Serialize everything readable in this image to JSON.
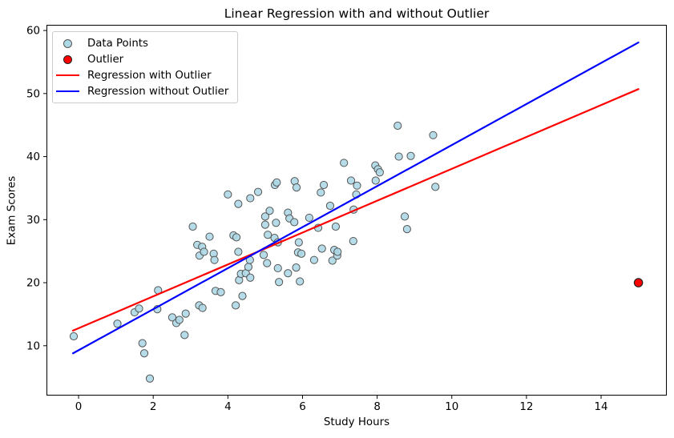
{
  "figure": {
    "title": "Linear Regression with and without Outlier",
    "xlabel": "Study Hours",
    "ylabel": "Exam Scores"
  },
  "legend": {
    "position": "upper-left",
    "items": [
      {
        "label": "Data Points",
        "marker": "circle",
        "color": "#add8e6",
        "edge": "#555555"
      },
      {
        "label": "Outlier",
        "marker": "circle",
        "color": "#ff0000",
        "edge": "#222222"
      },
      {
        "label": "Regression with Outlier",
        "marker": "line",
        "color": "#ff0000"
      },
      {
        "label": "Regression without Outlier",
        "marker": "line",
        "color": "#0000ff"
      }
    ]
  },
  "chart_data": {
    "type": "scatter",
    "title": "Linear Regression with and without Outlier",
    "xlabel": "Study Hours",
    "ylabel": "Exam Scores",
    "xlim": [
      -0.86,
      15.76
    ],
    "ylim": [
      2.1,
      60.9
    ],
    "x_ticks": [
      0,
      2,
      4,
      6,
      8,
      10,
      12,
      14
    ],
    "y_ticks": [
      10,
      20,
      30,
      40,
      50,
      60
    ],
    "grid": false,
    "legend_position": "upper-left",
    "series": [
      {
        "name": "Data Points",
        "type": "scatter",
        "color": "#add8e6",
        "edge_color": "#555555",
        "points": [
          [
            -0.13,
            11.5
          ],
          [
            1.04,
            13.5
          ],
          [
            1.5,
            15.3
          ],
          [
            1.62,
            15.9
          ],
          [
            1.71,
            10.4
          ],
          [
            1.76,
            8.8
          ],
          [
            1.91,
            4.8
          ],
          [
            2.11,
            15.8
          ],
          [
            2.13,
            18.8
          ],
          [
            2.51,
            14.5
          ],
          [
            2.62,
            13.6
          ],
          [
            2.7,
            14.1
          ],
          [
            2.84,
            11.7
          ],
          [
            2.87,
            15.1
          ],
          [
            3.06,
            28.9
          ],
          [
            3.18,
            26.0
          ],
          [
            3.23,
            16.4
          ],
          [
            3.24,
            24.3
          ],
          [
            3.31,
            25.7
          ],
          [
            3.32,
            16.0
          ],
          [
            3.36,
            24.9
          ],
          [
            3.51,
            27.3
          ],
          [
            3.62,
            24.6
          ],
          [
            3.64,
            23.6
          ],
          [
            3.67,
            18.7
          ],
          [
            3.81,
            18.5
          ],
          [
            4.0,
            34.0
          ],
          [
            4.15,
            27.5
          ],
          [
            4.21,
            16.4
          ],
          [
            4.23,
            27.2
          ],
          [
            4.28,
            24.9
          ],
          [
            4.28,
            32.5
          ],
          [
            4.3,
            20.4
          ],
          [
            4.35,
            21.4
          ],
          [
            4.39,
            17.9
          ],
          [
            4.48,
            21.5
          ],
          [
            4.55,
            22.5
          ],
          [
            4.59,
            23.6
          ],
          [
            4.6,
            20.8
          ],
          [
            4.6,
            33.4
          ],
          [
            4.81,
            34.4
          ],
          [
            4.96,
            24.4
          ],
          [
            5.0,
            29.2
          ],
          [
            5.0,
            30.5
          ],
          [
            5.05,
            23.1
          ],
          [
            5.07,
            27.6
          ],
          [
            5.12,
            31.4
          ],
          [
            5.25,
            27.1
          ],
          [
            5.26,
            35.5
          ],
          [
            5.29,
            29.5
          ],
          [
            5.31,
            35.9
          ],
          [
            5.34,
            22.3
          ],
          [
            5.34,
            26.4
          ],
          [
            5.37,
            20.1
          ],
          [
            5.61,
            21.5
          ],
          [
            5.61,
            31.1
          ],
          [
            5.65,
            30.2
          ],
          [
            5.78,
            29.6
          ],
          [
            5.79,
            36.1
          ],
          [
            5.83,
            22.4
          ],
          [
            5.84,
            35.1
          ],
          [
            5.88,
            24.8
          ],
          [
            5.9,
            26.4
          ],
          [
            5.93,
            20.2
          ],
          [
            5.97,
            24.6
          ],
          [
            6.18,
            30.3
          ],
          [
            6.31,
            23.6
          ],
          [
            6.42,
            28.7
          ],
          [
            6.49,
            34.3
          ],
          [
            6.52,
            25.4
          ],
          [
            6.57,
            35.5
          ],
          [
            6.74,
            32.2
          ],
          [
            6.8,
            23.5
          ],
          [
            6.85,
            25.2
          ],
          [
            6.89,
            28.9
          ],
          [
            6.93,
            24.3
          ],
          [
            6.94,
            24.9
          ],
          [
            7.11,
            39.0
          ],
          [
            7.3,
            36.2
          ],
          [
            7.36,
            26.6
          ],
          [
            7.37,
            31.6
          ],
          [
            7.44,
            34.0
          ],
          [
            7.46,
            35.4
          ],
          [
            7.95,
            38.6
          ],
          [
            7.96,
            36.2
          ],
          [
            8.02,
            38.0
          ],
          [
            8.07,
            37.5
          ],
          [
            8.55,
            44.9
          ],
          [
            8.58,
            40.0
          ],
          [
            8.74,
            30.5
          ],
          [
            8.8,
            28.5
          ],
          [
            8.9,
            40.1
          ],
          [
            9.5,
            43.4
          ],
          [
            9.56,
            35.2
          ]
        ]
      },
      {
        "name": "Outlier",
        "type": "scatter",
        "color": "#ff0000",
        "edge_color": "#222222",
        "points": [
          [
            15.0,
            20.0
          ]
        ]
      },
      {
        "name": "Regression with Outlier",
        "type": "line",
        "color": "#ff0000",
        "x": [
          -0.15,
          15.0
        ],
        "y": [
          12.4,
          50.7
        ]
      },
      {
        "name": "Regression without Outlier",
        "type": "line",
        "color": "#0000ff",
        "x": [
          -0.15,
          15.0
        ],
        "y": [
          8.8,
          58.1
        ]
      }
    ]
  }
}
